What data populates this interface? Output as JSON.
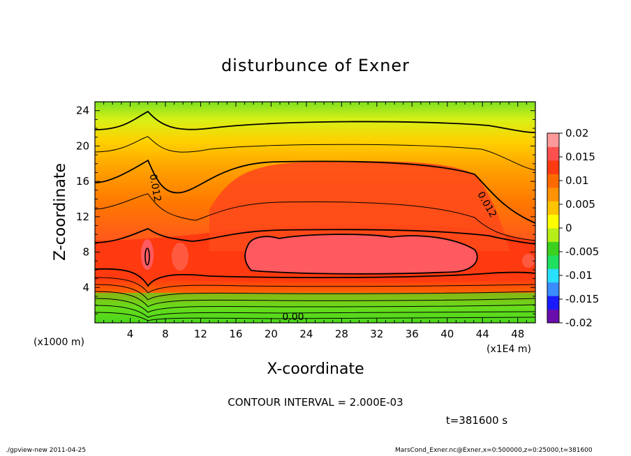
{
  "chart_data": {
    "type": "heatmap",
    "title": "disturbunce of Exner",
    "xlabel": "X-coordinate",
    "ylabel": "Z-coordinate",
    "x_unit_left": "(x1000 m)",
    "x_unit_right": "(x1E4 m)",
    "xlim": [
      0,
      50
    ],
    "ylim": [
      0,
      25
    ],
    "x_ticks": [
      4,
      8,
      12,
      16,
      20,
      24,
      28,
      32,
      36,
      40,
      44,
      48
    ],
    "y_ticks": [
      4,
      8,
      12,
      16,
      20,
      24
    ],
    "colorbar": {
      "range": [
        -0.02,
        0.02
      ],
      "ticks": [
        {
          "value": 0.02,
          "label": "0.02"
        },
        {
          "value": 0.015,
          "label": "0.015"
        },
        {
          "value": 0.01,
          "label": "0.01"
        },
        {
          "value": 0.005,
          "label": "0.005"
        },
        {
          "value": 0,
          "label": "0"
        },
        {
          "value": -0.005,
          "label": "-0.005"
        },
        {
          "value": -0.01,
          "label": "-0.01"
        },
        {
          "value": -0.015,
          "label": "-0.015"
        },
        {
          "value": -0.02,
          "label": "-0.02"
        }
      ],
      "colors": [
        "#6a0dad",
        "#1a1aff",
        "#3a8cff",
        "#29e0ff",
        "#20e060",
        "#3cd11e",
        "#b8ee18",
        "#ffff00",
        "#ffc400",
        "#ff9200",
        "#ff6a00",
        "#ff3a10",
        "#ff5050",
        "#ff9a9a"
      ]
    },
    "contour_labels": [
      {
        "text": "0.012",
        "x": 6.5,
        "y": 15.2,
        "rotate": 80
      },
      {
        "text": "0.012",
        "x": 44.2,
        "y": 13.2,
        "rotate": 60
      },
      {
        "text": "0.00",
        "x": 22.5,
        "y": 0.3,
        "rotate": 0
      }
    ],
    "contour_interval_text": "CONTOUR INTERVAL = 2.000E-03",
    "time_text": "t=381600 s"
  },
  "footer": {
    "left": "./gpview-new   2011-04-25",
    "right": "MarsCond_Exner.nc@Exner,x=0:500000,z=0:25000,t=381600"
  }
}
